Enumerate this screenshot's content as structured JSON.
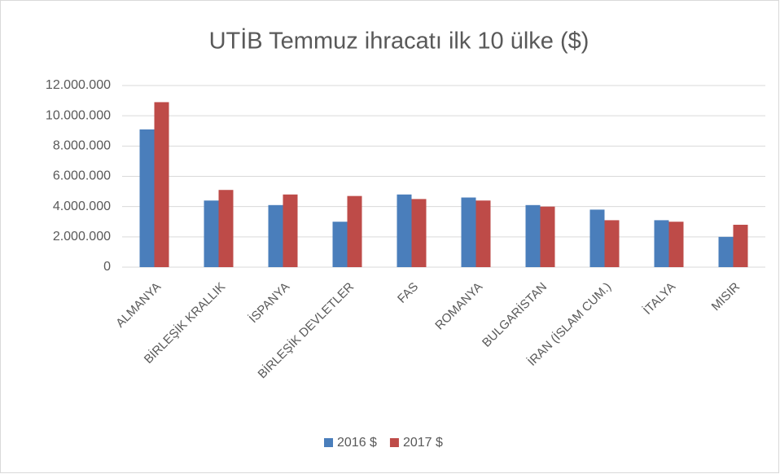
{
  "chart_data": {
    "type": "bar",
    "title": "UTİB Temmuz ihracatı ilk 10 ülke ($)",
    "categories": [
      "ALMANYA",
      "BİRLEŞİK KRALLIK",
      "İSPANYA",
      "BİRLEŞİK DEVLETLER",
      "FAS",
      "ROMANYA",
      "BULGARİSTAN",
      "İRAN (İSLAM CUM.)",
      "İTALYA",
      "MISIR"
    ],
    "series": [
      {
        "name": "2016 $",
        "color": "#4a7ebb",
        "values": [
          9100000,
          4400000,
          4100000,
          3000000,
          4800000,
          4600000,
          4100000,
          3800000,
          3100000,
          2000000
        ]
      },
      {
        "name": "2017 $",
        "color": "#be4b48",
        "values": [
          10900000,
          5100000,
          4800000,
          4700000,
          4500000,
          4400000,
          4000000,
          3100000,
          3000000,
          2800000
        ]
      }
    ],
    "ylim": [
      0,
      12000000
    ],
    "yticks": [
      0,
      {
        "value": 2000000,
        "label": "2.000.000"
      },
      {
        "value": 4000000,
        "label": "4.000.000"
      },
      {
        "value": 6000000,
        "label": "6.000.000"
      },
      {
        "value": 8000000,
        "label": "8.000.000"
      },
      {
        "value": 10000000,
        "label": "10.000.000"
      },
      {
        "value": 12000000,
        "label": "12.000.000"
      }
    ],
    "grid": true,
    "legend": "bottom"
  }
}
